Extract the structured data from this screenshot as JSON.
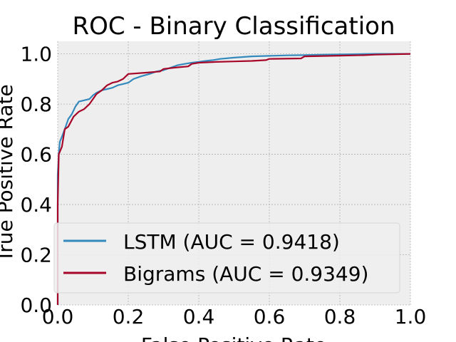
{
  "chart_data": {
    "type": "line",
    "title": "ROC - Binary Classification",
    "xlabel": "False Positive Rate",
    "ylabel": "True Positive Rate",
    "xlim": [
      0.0,
      1.0
    ],
    "ylim": [
      0.0,
      1.05
    ],
    "xticks": [
      0.0,
      0.2,
      0.4,
      0.6,
      0.8,
      1.0
    ],
    "yticks": [
      0.0,
      0.2,
      0.4,
      0.6,
      0.8,
      1.0
    ],
    "xtick_labels": [
      "0.0",
      "0.2",
      "0.4",
      "0.6",
      "0.8",
      "1.0"
    ],
    "ytick_labels": [
      "0.0",
      "0.2",
      "0.4",
      "0.6",
      "0.8",
      "1.0"
    ],
    "grid": true,
    "legend_position": "lower-right",
    "series": [
      {
        "name": "LSTM (AUC = 0.9418)",
        "color": "#348abd",
        "x": [
          0.0,
          0.0,
          0.003,
          0.006,
          0.012,
          0.02,
          0.03,
          0.04,
          0.05,
          0.06,
          0.075,
          0.09,
          0.1,
          0.11,
          0.125,
          0.14,
          0.155,
          0.17,
          0.185,
          0.2,
          0.215,
          0.235,
          0.26,
          0.28,
          0.3,
          0.32,
          0.34,
          0.36,
          0.38,
          0.4,
          0.42,
          0.44,
          0.46,
          0.5,
          0.55,
          0.6,
          0.65,
          0.7,
          0.75,
          0.8,
          0.85,
          0.9,
          1.0
        ],
        "y": [
          0.0,
          0.52,
          0.6,
          0.65,
          0.67,
          0.7,
          0.74,
          0.76,
          0.79,
          0.81,
          0.815,
          0.82,
          0.835,
          0.845,
          0.855,
          0.86,
          0.865,
          0.875,
          0.88,
          0.885,
          0.9,
          0.91,
          0.92,
          0.93,
          0.935,
          0.945,
          0.955,
          0.96,
          0.965,
          0.968,
          0.972,
          0.975,
          0.98,
          0.985,
          0.99,
          0.992,
          0.994,
          0.995,
          0.997,
          0.998,
          0.999,
          1.0,
          1.0
        ]
      },
      {
        "name": "Bigrams (AUC = 0.9349)",
        "color": "#a60628",
        "x": [
          0.0,
          0.0,
          0.003,
          0.006,
          0.012,
          0.02,
          0.03,
          0.045,
          0.06,
          0.075,
          0.09,
          0.1,
          0.11,
          0.125,
          0.14,
          0.155,
          0.17,
          0.185,
          0.2,
          0.25,
          0.29,
          0.3,
          0.33,
          0.37,
          0.38,
          0.4,
          0.45,
          0.5,
          0.55,
          0.59,
          0.6,
          0.69,
          0.7,
          0.8,
          0.87,
          0.9,
          1.0
        ],
        "y": [
          0.0,
          0.4,
          0.6,
          0.61,
          0.63,
          0.7,
          0.71,
          0.75,
          0.77,
          0.78,
          0.8,
          0.82,
          0.84,
          0.855,
          0.875,
          0.885,
          0.89,
          0.9,
          0.92,
          0.925,
          0.93,
          0.94,
          0.945,
          0.95,
          0.96,
          0.965,
          0.968,
          0.97,
          0.972,
          0.975,
          0.98,
          0.982,
          0.99,
          0.993,
          0.995,
          0.997,
          1.0
        ]
      }
    ]
  }
}
